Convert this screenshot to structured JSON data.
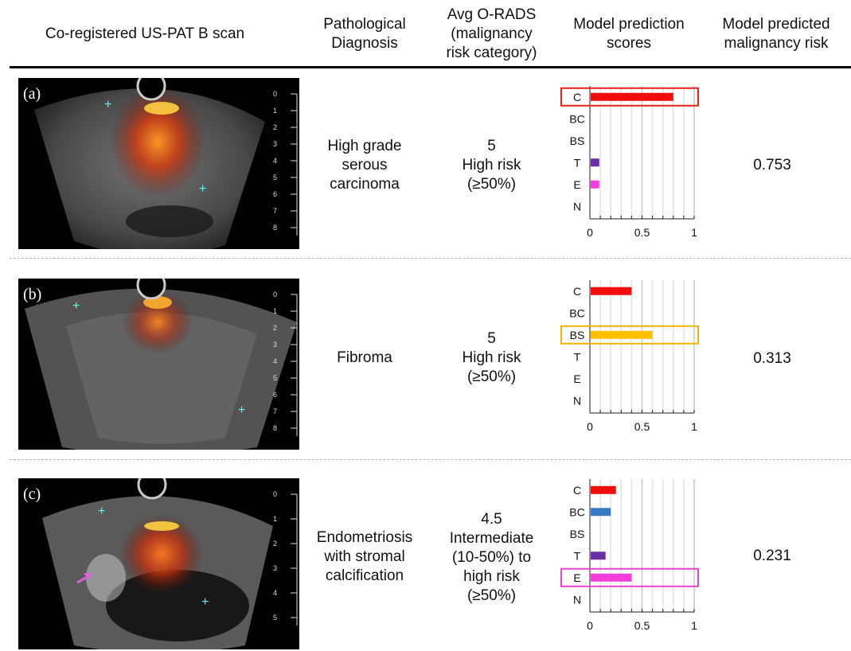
{
  "headers": {
    "scan": "Co-registered US-PAT B scan",
    "diagnosis": "Pathological\nDiagnosis",
    "orads": "Avg O-RADS\n(malignancy\nrisk category)",
    "pred_scores": "Model prediction\nscores",
    "pred_risk": "Model predicted\nmalignancy risk"
  },
  "rows": [
    {
      "panel_label": "(a)",
      "diagnosis": "High grade\nserous\ncarcinoma",
      "orads": "5\nHigh risk\n(≥50%)",
      "risk": "0.753",
      "depth_ticks": [
        "0",
        "1",
        "2",
        "3",
        "4",
        "5",
        "6",
        "7",
        "8"
      ],
      "highlight": "C",
      "highlight_color": "#e8201c"
    },
    {
      "panel_label": "(b)",
      "diagnosis": "Fibroma",
      "orads": "5\nHigh risk\n(≥50%)",
      "risk": "0.313",
      "depth_ticks": [
        "0",
        "1",
        "2",
        "3",
        "4",
        "5",
        "6",
        "7",
        "8"
      ],
      "highlight": "BS",
      "highlight_color": "#f0b400"
    },
    {
      "panel_label": "(c)",
      "diagnosis": "Endometriosis\nwith stromal\ncalcification",
      "orads": "4.5\nIntermediate\n(10-50%) to\nhigh risk\n(≥50%)",
      "risk": "0.231",
      "depth_ticks": [
        "0",
        "1",
        "2",
        "3",
        "4",
        "5"
      ],
      "highlight": "E",
      "highlight_color": "#ee3fcf"
    }
  ],
  "chart_data": [
    {
      "type": "bar",
      "categories": [
        "C",
        "BC",
        "BS",
        "T",
        "E",
        "N"
      ],
      "values": [
        0.8,
        0,
        0,
        0.09,
        0.09,
        0
      ],
      "colors": [
        "#f20d0d",
        "#3a78c3",
        "#ffbf00",
        "#6a2fa0",
        "#f53ed8",
        "#888888"
      ],
      "xticks": [
        "0",
        "0.5",
        "1"
      ],
      "xlim": [
        0,
        1
      ]
    },
    {
      "type": "bar",
      "categories": [
        "C",
        "BC",
        "BS",
        "T",
        "E",
        "N"
      ],
      "values": [
        0.4,
        0,
        0.6,
        0,
        0,
        0
      ],
      "colors": [
        "#f20d0d",
        "#3a78c3",
        "#ffbf00",
        "#6a2fa0",
        "#f53ed8",
        "#888888"
      ],
      "xticks": [
        "0",
        "0.5",
        "1"
      ],
      "xlim": [
        0,
        1
      ]
    },
    {
      "type": "bar",
      "categories": [
        "C",
        "BC",
        "BS",
        "T",
        "E",
        "N"
      ],
      "values": [
        0.25,
        0.2,
        0,
        0.15,
        0.4,
        0
      ],
      "colors": [
        "#f20d0d",
        "#3a78c3",
        "#ffbf00",
        "#6a2fa0",
        "#f53ed8",
        "#888888"
      ],
      "xticks": [
        "0",
        "0.5",
        "1"
      ],
      "xlim": [
        0,
        1
      ]
    }
  ]
}
